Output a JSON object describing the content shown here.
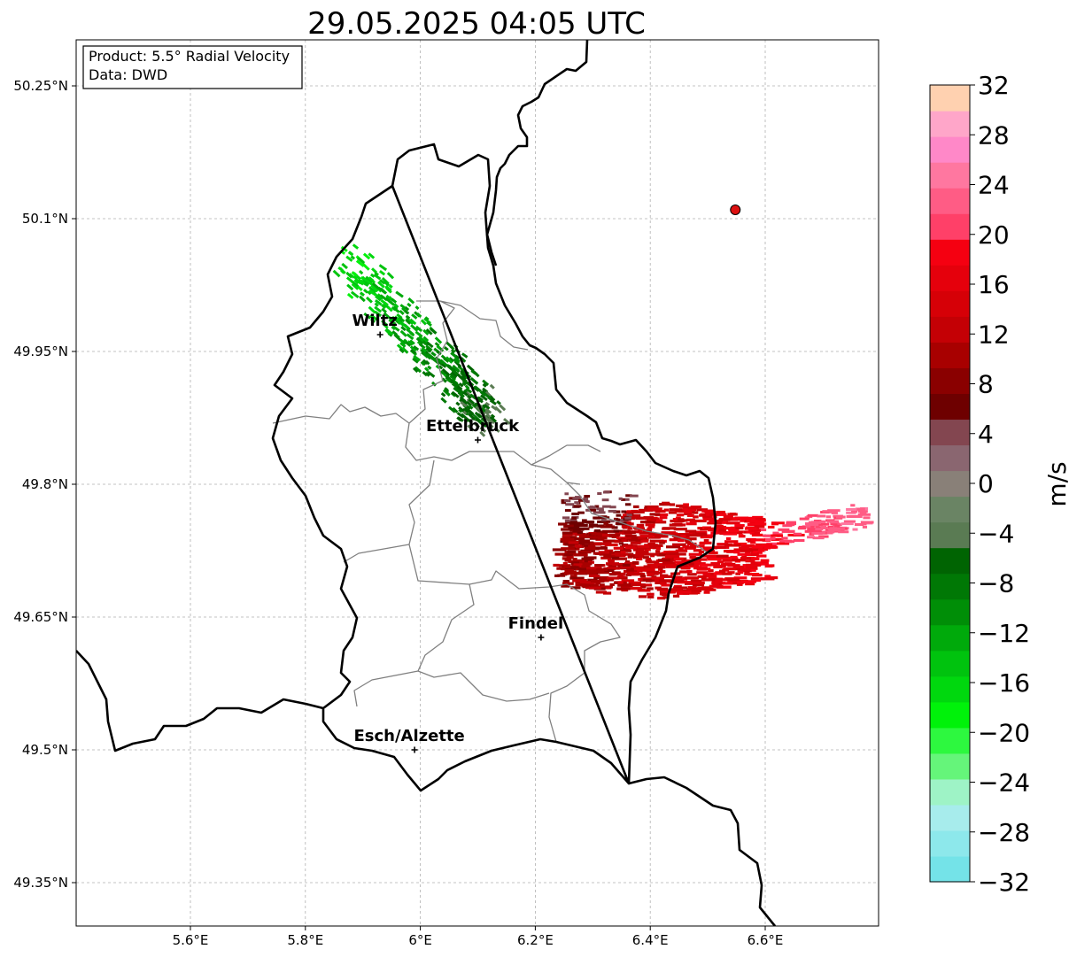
{
  "title": "29.05.2025 04:05 UTC",
  "info_box": {
    "product": "Product: 5.5° Radial Velocity",
    "source": "Data: DWD"
  },
  "axes": {
    "x_ticks": [
      {
        "value": 5.6,
        "label": "5.6°E"
      },
      {
        "value": 5.8,
        "label": "5.8°E"
      },
      {
        "value": 6.0,
        "label": "6°E"
      },
      {
        "value": 6.2,
        "label": "6.2°E"
      },
      {
        "value": 6.4,
        "label": "6.4°E"
      },
      {
        "value": 6.6,
        "label": "6.6°E"
      }
    ],
    "y_ticks": [
      {
        "value": 50.25,
        "label": "50.25°N"
      },
      {
        "value": 50.1,
        "label": "50.1°N"
      },
      {
        "value": 49.95,
        "label": "49.95°N"
      },
      {
        "value": 49.8,
        "label": "49.8°N"
      },
      {
        "value": 49.65,
        "label": "49.65°N"
      },
      {
        "value": 49.5,
        "label": "49.5°N"
      },
      {
        "value": 49.35,
        "label": "49.35°N"
      }
    ],
    "grid": true
  },
  "cities": [
    {
      "name": "Wiltz",
      "lon": 5.93,
      "lat": 49.969
    },
    {
      "name": "Ettelbruck",
      "lon": 6.1,
      "lat": 49.85
    },
    {
      "name": "Findel",
      "lon": 6.21,
      "lat": 49.627
    },
    {
      "name": "Esch/Alzette",
      "lon": 5.99,
      "lat": 49.5
    }
  ],
  "radar_site": {
    "lon": 6.548,
    "lat": 50.11,
    "color": "#dd1111"
  },
  "colorbar": {
    "unit": "m/s",
    "min": -32,
    "max": 32,
    "tick_labels": [
      "32",
      "28",
      "24",
      "20",
      "16",
      "12",
      "8",
      "4",
      "0",
      "−4",
      "−8",
      "−12",
      "−16",
      "−20",
      "−24",
      "−28",
      "−32"
    ],
    "colors_bottom_to_top": [
      "#74e3e8",
      "#8de8eb",
      "#a7ecec",
      "#9ef3c6",
      "#65f57a",
      "#2df83f",
      "#00f20a",
      "#00d80e",
      "#00c30e",
      "#00aa0b",
      "#008e07",
      "#007805",
      "#006402",
      "#5a7b53",
      "#6a8464",
      "#898078",
      "#8a6670",
      "#834650",
      "#6e0000",
      "#8a0000",
      "#a80000",
      "#c40005",
      "#d60007",
      "#e5000c",
      "#f50011",
      "#ff4068",
      "#ff5c85",
      "#ff77a0",
      "#ff88c8",
      "#ffa6c9",
      "#ffd1b0"
    ]
  },
  "chart_data": {
    "type": "map",
    "title": "29.05.2025 04:05 UTC",
    "xlim": [
      5.4,
      6.8
    ],
    "ylim": [
      49.3,
      50.3
    ],
    "value_unit": "m/s",
    "echo_regions": [
      {
        "area": "Wiltz–Ettelbruck band (NW–SE)",
        "velocity_range_ms": [
          -20,
          -4
        ],
        "dominant": "green (receding)"
      },
      {
        "area": "East of Findel to 6.8°E",
        "velocity_range_ms": [
          4,
          24
        ],
        "dominant": "red (approaching)"
      }
    ]
  }
}
